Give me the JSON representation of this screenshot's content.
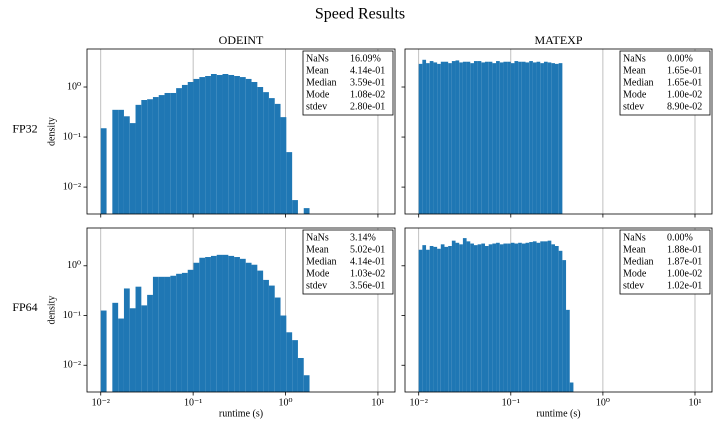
{
  "title": "Speed Results",
  "chart_data": [
    {
      "type": "histogram",
      "title": "ODEINT",
      "row_label": "FP32",
      "ylabel": "density",
      "color": "#1f77b4",
      "xscale": "log",
      "yscale": "log",
      "grid": "x",
      "xlim": [
        0.0071,
        15.3
      ],
      "ylim": [
        0.0029,
        5.75
      ],
      "xticks": [
        0.01,
        0.1,
        1,
        10
      ],
      "yticks": [
        {
          "value": 0.01,
          "label": "10⁻²"
        },
        {
          "value": 0.1,
          "label": "10⁻¹"
        },
        {
          "value": 1,
          "label": "10⁰"
        }
      ],
      "bins": [
        0.01,
        0.01156,
        0.01335,
        0.01543,
        0.01783,
        0.0206,
        0.0238,
        0.0275,
        0.03178,
        0.03672,
        0.04243,
        0.04903,
        0.05665,
        0.06546,
        0.07564,
        0.0874,
        0.101,
        0.1167,
        0.1348,
        0.1558,
        0.18,
        0.208,
        0.2404,
        0.2777,
        0.3209,
        0.3708,
        0.4285,
        0.4951,
        0.5721,
        0.6611,
        0.7639,
        0.8827,
        1.02,
        1.179,
        1.362,
        1.574,
        1.818
      ],
      "values": [
        0.15,
        0,
        0.35,
        0.35,
        0.26,
        0.19,
        0.44,
        0.55,
        0.57,
        0.63,
        0.69,
        0.76,
        0.76,
        0.95,
        1.1,
        1.26,
        1.45,
        1.58,
        1.66,
        1.82,
        1.74,
        1.82,
        1.74,
        1.66,
        1.58,
        1.45,
        1.26,
        1.0,
        0.79,
        0.6,
        0.46,
        0.25,
        0.05,
        0.0055,
        0,
        0.0038
      ],
      "stats": [
        [
          "NaNs",
          "16.09%"
        ],
        [
          "Mean",
          "4.14e-01"
        ],
        [
          "Median",
          "3.59e-01"
        ],
        [
          "Mode",
          "1.08e-02"
        ],
        [
          "stdev",
          "2.80e-01"
        ]
      ]
    },
    {
      "type": "histogram",
      "title": "MATEXP",
      "color": "#1f77b4",
      "xscale": "log",
      "yscale": "log",
      "grid": "x",
      "xlim": [
        0.0071,
        15.3
      ],
      "ylim": [
        0.0029,
        5.75
      ],
      "xticks": [
        0.01,
        0.1,
        1,
        10
      ],
      "yticks": [
        0.01,
        0.1,
        1
      ],
      "bins": [
        0.01,
        0.01096,
        0.01202,
        0.01318,
        0.01445,
        0.01585,
        0.01738,
        0.01905,
        0.02089,
        0.02291,
        0.02512,
        0.02754,
        0.0302,
        0.03311,
        0.03631,
        0.03981,
        0.04365,
        0.04786,
        0.05248,
        0.05754,
        0.0631,
        0.06918,
        0.07586,
        0.08318,
        0.0912,
        0.1,
        0.1096,
        0.1202,
        0.1318,
        0.1445,
        0.1585,
        0.1738,
        0.1905,
        0.2089,
        0.2291,
        0.2512,
        0.2754,
        0.302,
        0.3311,
        0.3631
      ],
      "values": [
        2.9,
        3.5,
        3.0,
        3.3,
        3.1,
        2.9,
        3.2,
        3.2,
        3.0,
        3.3,
        3.4,
        3.1,
        3.2,
        3.2,
        3.0,
        3.3,
        3.3,
        3.1,
        3.2,
        3.2,
        3.0,
        3.3,
        3.1,
        3.2,
        3.2,
        3.0,
        3.3,
        3.2,
        3.2,
        3.1,
        3.3,
        3.1,
        3.2,
        3.0,
        3.2,
        3.1,
        3.0,
        2.9,
        3.0
      ],
      "stats": [
        [
          "NaNs",
          "0.00%"
        ],
        [
          "Mean",
          "1.65e-01"
        ],
        [
          "Median",
          "1.65e-01"
        ],
        [
          "Mode",
          "1.00e-02"
        ],
        [
          "stdev",
          "8.90e-02"
        ]
      ]
    },
    {
      "type": "histogram",
      "row_label": "FP64",
      "ylabel": "density",
      "xlabel": "runtime (s)",
      "color": "#1f77b4",
      "xscale": "log",
      "yscale": "log",
      "grid": "x",
      "xlim": [
        0.0071,
        15.3
      ],
      "ylim": [
        0.0029,
        5.75
      ],
      "xticks": [
        {
          "value": 0.01,
          "label": "10⁻²"
        },
        {
          "value": 0.1,
          "label": "10⁻¹"
        },
        {
          "value": 1,
          "label": "10⁰"
        },
        {
          "value": 10,
          "label": "10¹"
        }
      ],
      "yticks": [
        {
          "value": 0.01,
          "label": "10⁻²"
        },
        {
          "value": 0.1,
          "label": "10⁻¹"
        },
        {
          "value": 1,
          "label": "10⁰"
        }
      ],
      "bins": [
        0.01,
        0.01156,
        0.01335,
        0.01543,
        0.01783,
        0.0206,
        0.0238,
        0.0275,
        0.03178,
        0.03672,
        0.04243,
        0.04903,
        0.05665,
        0.06546,
        0.07564,
        0.0874,
        0.101,
        0.1167,
        0.1348,
        0.1558,
        0.18,
        0.208,
        0.2404,
        0.2777,
        0.3209,
        0.3708,
        0.4285,
        0.4951,
        0.5721,
        0.6611,
        0.7639,
        0.8827,
        1.02,
        1.179,
        1.362,
        1.574,
        1.818
      ],
      "values": [
        0.126,
        0,
        0.18,
        0.087,
        0.35,
        0.14,
        0.38,
        0.16,
        0.26,
        0.6,
        0.6,
        0.6,
        0.63,
        0.69,
        0.72,
        0.83,
        1.15,
        1.45,
        1.5,
        1.58,
        1.66,
        1.66,
        1.58,
        1.5,
        1.38,
        1.15,
        1.05,
        0.8,
        0.52,
        0.4,
        0.23,
        0.1,
        0.046,
        0.032,
        0.014,
        0.0063
      ],
      "stats": [
        [
          "NaNs",
          "3.14%"
        ],
        [
          "Mean",
          "5.02e-01"
        ],
        [
          "Median",
          "4.14e-01"
        ],
        [
          "Mode",
          "1.03e-02"
        ],
        [
          "stdev",
          "3.56e-01"
        ]
      ]
    },
    {
      "type": "histogram",
      "xlabel": "runtime (s)",
      "color": "#1f77b4",
      "xscale": "log",
      "yscale": "log",
      "grid": "x",
      "xlim": [
        0.0071,
        15.3
      ],
      "ylim": [
        0.0029,
        5.75
      ],
      "xticks": [
        {
          "value": 0.01,
          "label": "10⁻²"
        },
        {
          "value": 0.1,
          "label": "10⁻¹"
        },
        {
          "value": 1,
          "label": "10⁰"
        },
        {
          "value": 10,
          "label": "10¹"
        }
      ],
      "yticks": [
        0.01,
        0.1,
        1
      ],
      "bins": [
        0.01,
        0.01096,
        0.01202,
        0.01318,
        0.01445,
        0.01585,
        0.01738,
        0.01905,
        0.02089,
        0.02291,
        0.02512,
        0.02754,
        0.0302,
        0.03311,
        0.03631,
        0.03981,
        0.04365,
        0.04786,
        0.05248,
        0.05754,
        0.0631,
        0.06918,
        0.07586,
        0.08318,
        0.0912,
        0.1,
        0.1096,
        0.1202,
        0.1318,
        0.1445,
        0.1585,
        0.1738,
        0.1905,
        0.2089,
        0.2291,
        0.2512,
        0.2754,
        0.302,
        0.3311,
        0.3631,
        0.3981,
        0.4365,
        0.4786
      ],
      "values": [
        2.1,
        2.6,
        2.1,
        2.5,
        2.4,
        2.2,
        2.7,
        2.4,
        2.5,
        3.2,
        2.9,
        2.7,
        3.6,
        3.1,
        2.8,
        2.6,
        2.7,
        2.8,
        2.5,
        2.7,
        2.8,
        2.9,
        2.7,
        2.8,
        2.8,
        2.9,
        2.8,
        2.9,
        2.8,
        2.9,
        3.0,
        3.1,
        2.9,
        3.1,
        3.1,
        3.2,
        2.7,
        2.5,
        2.0,
        1.3,
        0.13,
        0.0045
      ],
      "stats": [
        [
          "NaNs",
          "0.00%"
        ],
        [
          "Mean",
          "1.88e-01"
        ],
        [
          "Median",
          "1.87e-01"
        ],
        [
          "Mode",
          "1.00e-02"
        ],
        [
          "stdev",
          "1.02e-01"
        ]
      ]
    }
  ]
}
